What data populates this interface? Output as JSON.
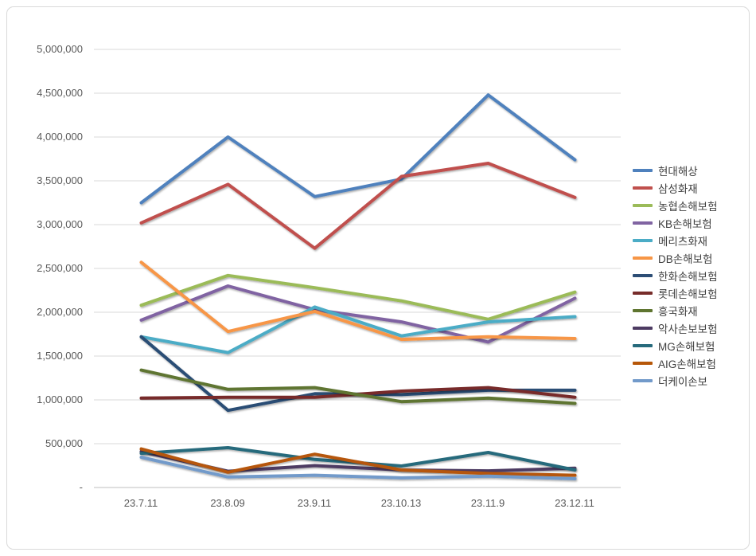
{
  "chart_data": {
    "type": "line",
    "title": "",
    "legend_position": "right",
    "grid": true,
    "categories": [
      "23.7.11",
      "23.8.09",
      "23.9.11",
      "23.10.13",
      "23.11.9",
      "23.12.11"
    ],
    "y_axis": {
      "min": 0,
      "max": 5000000,
      "step": 500000,
      "labels": [
        "5,000,000",
        "4,500,000",
        "4,000,000",
        "3,500,000",
        "3,000,000",
        "2,500,000",
        "2,000,000",
        "1,500,000",
        "1,000,000",
        "500,000",
        "-"
      ]
    },
    "series": [
      {
        "name": "현대해상",
        "color": "#4F81BD",
        "values": [
          3250000,
          4000000,
          3320000,
          3520000,
          4480000,
          3740000
        ]
      },
      {
        "name": "삼성화재",
        "color": "#C0504D",
        "values": [
          3020000,
          3460000,
          2730000,
          3550000,
          3700000,
          3310000
        ]
      },
      {
        "name": "농협손해보험",
        "color": "#9BBB59",
        "values": [
          2080000,
          2420000,
          2280000,
          2130000,
          1920000,
          2230000
        ]
      },
      {
        "name": "KB손해보험",
        "color": "#8064A2",
        "values": [
          1910000,
          2300000,
          2030000,
          1890000,
          1660000,
          2160000
        ]
      },
      {
        "name": "메리츠화재",
        "color": "#4BACC6",
        "values": [
          1720000,
          1540000,
          2060000,
          1730000,
          1890000,
          1950000
        ]
      },
      {
        "name": "DB손해보험",
        "color": "#F79646",
        "values": [
          2570000,
          1780000,
          2010000,
          1690000,
          1720000,
          1700000
        ]
      },
      {
        "name": "한화손해보험",
        "color": "#2C4D75",
        "values": [
          1720000,
          880000,
          1070000,
          1060000,
          1110000,
          1110000
        ]
      },
      {
        "name": "롯데손해보험",
        "color": "#772C2A",
        "values": [
          1020000,
          1030000,
          1030000,
          1100000,
          1140000,
          1030000
        ]
      },
      {
        "name": "흥국화재",
        "color": "#5F7530",
        "values": [
          1340000,
          1120000,
          1140000,
          980000,
          1020000,
          960000
        ]
      },
      {
        "name": "악사손보보험",
        "color": "#4D3B62",
        "values": [
          410000,
          185000,
          250000,
          200000,
          190000,
          220000
        ]
      },
      {
        "name": "MG손해보험",
        "color": "#276A7C",
        "values": [
          390000,
          455000,
          320000,
          245000,
          400000,
          200000
        ]
      },
      {
        "name": "AIG손해보험",
        "color": "#B65708",
        "values": [
          440000,
          175000,
          380000,
          200000,
          160000,
          140000
        ]
      },
      {
        "name": "더케이손보",
        "color": "#729ACA",
        "values": [
          345000,
          120000,
          140000,
          110000,
          130000,
          100000
        ]
      }
    ]
  }
}
